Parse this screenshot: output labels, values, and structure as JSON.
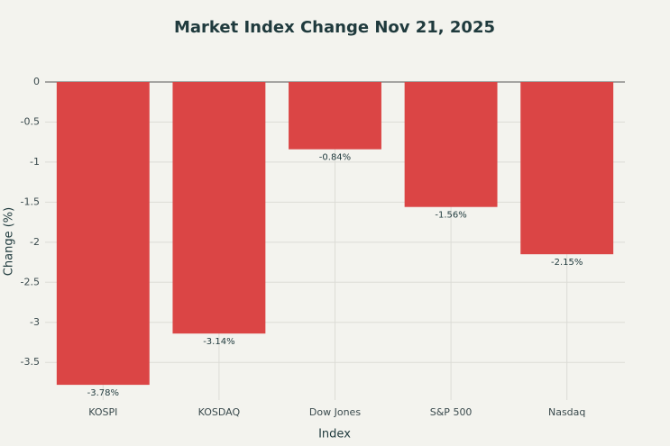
{
  "chart_data": {
    "type": "bar",
    "title": "Market Index Change Nov 21, 2025",
    "x_label": "Index",
    "y_label": "Change (%)",
    "categories": [
      "KOSPI",
      "KOSDAQ",
      "Dow Jones",
      "S&P 500",
      "Nasdaq"
    ],
    "values": [
      -3.78,
      -3.14,
      -0.84,
      -1.56,
      -2.15
    ],
    "value_labels": [
      "-3.78%",
      "-3.14%",
      "-0.84%",
      "-1.56%",
      "-2.15%"
    ],
    "color": "#db4545",
    "ylim": [
      -3.97,
      0
    ],
    "yticks": [
      0,
      -0.5,
      -1,
      -1.5,
      -2,
      -2.5,
      -3,
      -3.5
    ],
    "grid": true
  }
}
